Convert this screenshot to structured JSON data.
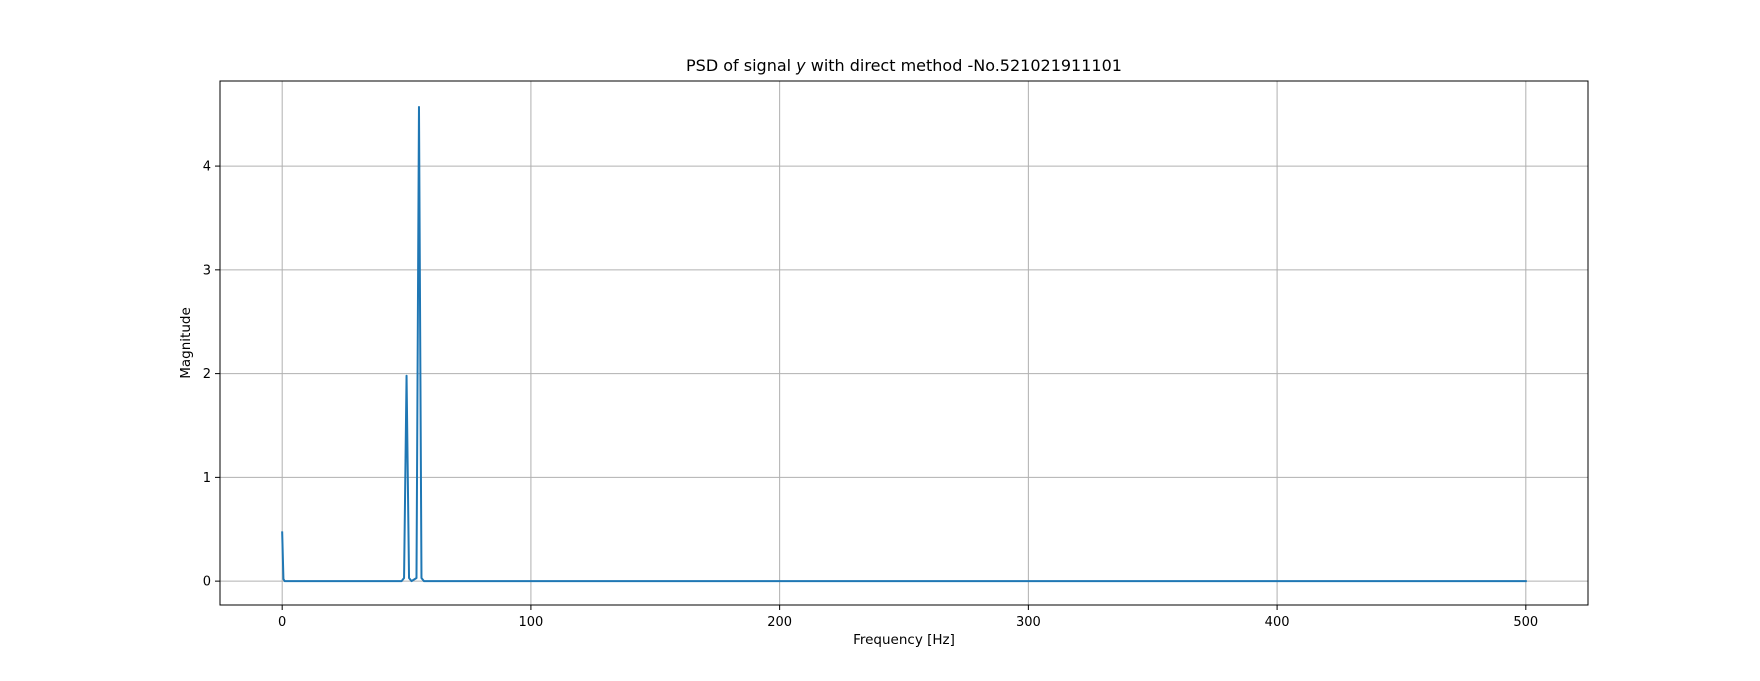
{
  "chart_data": {
    "type": "line",
    "title": {
      "prefix": "PSD of signal ",
      "variable": "y",
      "suffix": " with direct method -No.521021911101"
    },
    "xlabel": "Frequency [Hz]",
    "ylabel": "Magnitude",
    "xlim": [
      -25,
      525
    ],
    "ylim": [
      -0.23,
      4.82
    ],
    "xticks": [
      0,
      100,
      200,
      300,
      400,
      500
    ],
    "yticks": [
      0,
      1,
      2,
      3,
      4
    ],
    "grid": true,
    "legend": "none",
    "series": [
      {
        "color": "#1f77b4",
        "x": [
          0,
          0.5,
          1,
          10,
          20,
          30,
          40,
          48,
          49,
          50,
          51,
          52,
          54,
          55,
          56,
          57,
          60,
          100,
          150,
          200,
          250,
          300,
          350,
          400,
          450,
          500
        ],
        "y": [
          0.47,
          0.02,
          0,
          0,
          0,
          0,
          0,
          0,
          0.03,
          1.98,
          0.03,
          0,
          0.03,
          4.57,
          0.03,
          0,
          0,
          0,
          0,
          0,
          0,
          0,
          0,
          0,
          0,
          0
        ]
      }
    ]
  }
}
